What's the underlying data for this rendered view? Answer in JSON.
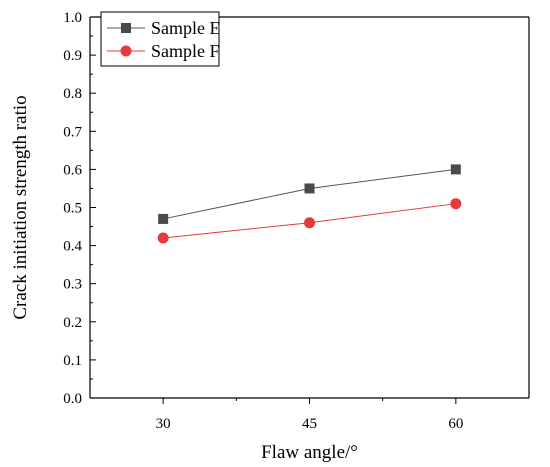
{
  "chart_data": {
    "type": "line",
    "title": "",
    "xlabel": "Flaw angle/°",
    "ylabel": "Crack initiation strength ratio",
    "x": [
      30,
      45,
      60
    ],
    "x_tick_labels": [
      "30",
      "45",
      "60"
    ],
    "xlim": [
      22.5,
      67.5
    ],
    "ylim": [
      0.0,
      1.0
    ],
    "y_tick_labels": [
      "0.0",
      "0.1",
      "0.2",
      "0.3",
      "0.4",
      "0.5",
      "0.6",
      "0.7",
      "0.8",
      "0.9",
      "1.0"
    ],
    "grid": false,
    "legend_position": "top-left",
    "series": [
      {
        "name": "Sample E",
        "values": [
          0.47,
          0.55,
          0.6
        ],
        "color": "#4a4a4a",
        "line_color": "#555555",
        "marker": "square"
      },
      {
        "name": "Sample F",
        "values": [
          0.42,
          0.46,
          0.51
        ],
        "color": "#e8373d",
        "line_color": "#e8373d",
        "marker": "circle"
      }
    ]
  }
}
